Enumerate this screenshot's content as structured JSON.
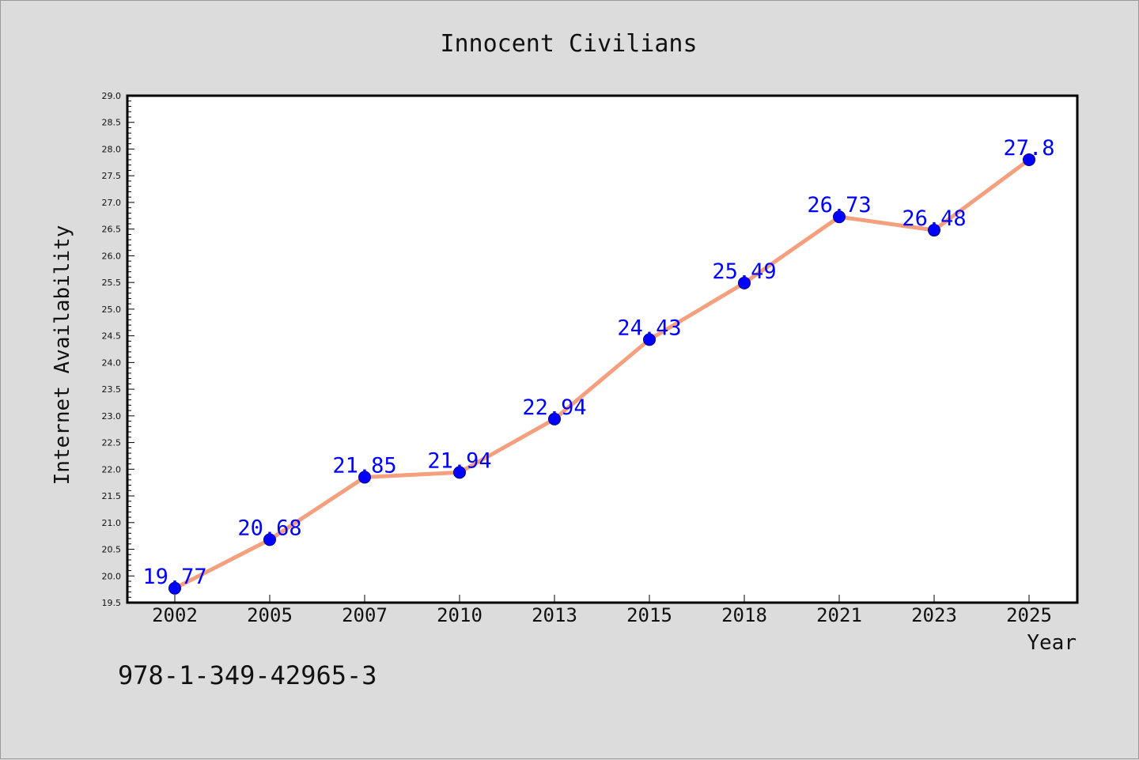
{
  "chart_data": {
    "type": "line",
    "title": "Innocent Civilians",
    "xlabel": "Year",
    "ylabel": "Internet Availability",
    "categories": [
      "2002",
      "2005",
      "2007",
      "2010",
      "2013",
      "2015",
      "2018",
      "2021",
      "2023",
      "2025"
    ],
    "values": [
      19.77,
      20.68,
      21.85,
      21.94,
      22.94,
      24.43,
      25.49,
      26.73,
      26.48,
      27.8
    ],
    "data_labels": [
      "19.77",
      "20.68",
      "21.85",
      "21.94",
      "22.94",
      "24.43",
      "25.49",
      "26.73",
      "26.48",
      "27.8"
    ],
    "ylim": [
      19.5,
      29.0
    ],
    "yticks": [
      "19.5",
      "20.0",
      "20.5",
      "21.0",
      "21.5",
      "22.0",
      "22.5",
      "23.0",
      "23.5",
      "24.0",
      "24.5",
      "25.0",
      "25.5",
      "26.0",
      "26.5",
      "27.0",
      "27.5",
      "28.0",
      "28.5",
      "29.0"
    ],
    "grid": false,
    "legend": "none",
    "colors": {
      "line": "#f4a07e",
      "marker": "#0000ff",
      "marker_edge": "#00008b",
      "data_label": "#0000ff",
      "background": "#dcdcdc",
      "plot_background": "#ffffff"
    }
  },
  "footer": {
    "isbn": "978-1-349-42965-3"
  }
}
